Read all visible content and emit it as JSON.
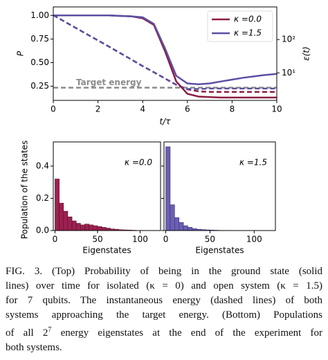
{
  "chart_data": [
    {
      "type": "line",
      "xlabel": "t/τ",
      "ylabel": "P",
      "y2label": "ε(t)",
      "x": [
        0,
        0.5,
        1,
        1.5,
        2,
        2.5,
        3,
        3.5,
        4,
        4.5,
        5,
        5.5,
        6,
        6.5,
        7,
        7.5,
        8,
        8.5,
        9,
        9.5,
        10
      ],
      "series": [
        {
          "name": "κ =0.0",
          "color": "#8c1c45",
          "values": [
            1.0,
            1.0,
            1.0,
            1.0,
            1.0,
            1.0,
            0.995,
            0.99,
            0.97,
            0.9,
            0.62,
            0.3,
            0.17,
            0.14,
            0.135,
            0.13,
            0.13,
            0.13,
            0.13,
            0.13,
            0.13
          ]
        },
        {
          "name": "κ =1.5",
          "color": "#5b4fa3",
          "values": [
            1.0,
            1.0,
            1.0,
            1.0,
            1.0,
            1.0,
            0.995,
            0.99,
            0.98,
            0.91,
            0.65,
            0.36,
            0.28,
            0.27,
            0.28,
            0.3,
            0.32,
            0.34,
            0.355,
            0.37,
            0.38
          ]
        }
      ],
      "energy_series": [
        {
          "color": "#8c1c45",
          "style": "dashed",
          "axis": "y2",
          "values": [
            537,
            347,
            224,
            145,
            94,
            61,
            39,
            25,
            16,
            10.5,
            6.8,
            4.4,
            3.2,
            2.8,
            2.7,
            2.7,
            2.7,
            2.7,
            2.7,
            2.7,
            2.7
          ]
        },
        {
          "color": "#5b4fa3",
          "style": "dashed",
          "axis": "y2",
          "values": [
            537,
            347,
            224,
            145,
            94,
            61,
            39,
            25,
            16,
            10.5,
            6.8,
            4.4,
            3.3,
            3.3,
            3.4,
            3.4,
            3.4,
            3.4,
            3.4,
            3.4,
            3.4
          ]
        }
      ],
      "target": {
        "label": "Target energy",
        "value": 3.6,
        "color": "#8c8c8c"
      },
      "xlim": [
        0,
        10
      ],
      "xticks": [
        0,
        2,
        4,
        6,
        8,
        10
      ],
      "ylim": [
        0.1,
        1.09
      ],
      "yticks": [
        0.25,
        {
          "value": 0.5,
          "label": "0.50"
        },
        0.75,
        {
          "value": 1.0,
          "label": "1.00"
        }
      ],
      "y2lim": [
        1.5,
        950
      ],
      "y2scale": "log",
      "y2ticks": [
        {
          "value": 10,
          "label": "10¹"
        },
        {
          "value": 100,
          "label": "10²"
        }
      ],
      "legend": "upper right"
    },
    {
      "type": "histogram",
      "annotation": "κ =0.0",
      "xlabel": "Eigenstates",
      "ylabel": "Population of the states",
      "color": "#9b2150",
      "edgecolor": "#5a0f2a",
      "bins": [
        0,
        5,
        10,
        15,
        20,
        25,
        30,
        35,
        40,
        45,
        50,
        55,
        60,
        65,
        70,
        75,
        80,
        85,
        90,
        95,
        100,
        105
      ],
      "values": [
        0.32,
        0.17,
        0.12,
        0.085,
        0.06,
        0.045,
        0.035,
        0.04,
        0.035,
        0.03,
        0.025,
        0.02,
        0.015,
        0.01,
        0.008,
        0.005,
        0.004,
        0.003,
        0.002,
        0.001,
        0.001
      ],
      "xlim": [
        -2,
        124
      ],
      "xticks": [
        0,
        50,
        100
      ],
      "ylim": [
        0,
        0.55
      ],
      "yticks": [
        {
          "value": 0,
          "label": "0.0"
        },
        0.2,
        0.4
      ]
    },
    {
      "type": "histogram",
      "annotation": "κ =1.5",
      "xlabel": "Eigenstates",
      "color": "#6a5fb0",
      "edgecolor": "#3b3080",
      "bins": [
        0,
        5,
        10,
        15,
        20,
        25,
        30,
        35,
        40,
        45,
        50,
        55,
        60,
        65,
        70
      ],
      "values": [
        0.52,
        0.16,
        0.08,
        0.05,
        0.03,
        0.02,
        0.012,
        0.008,
        0.006,
        0.004,
        0.003,
        0.002,
        0.001,
        0.001
      ],
      "xlim": [
        -2,
        124
      ],
      "xticks": [
        0,
        50,
        100
      ],
      "ylim": [
        0,
        0.55
      ]
    }
  ],
  "caption": {
    "lines": [
      [
        "FIG. 3.    (Top) Probability of being in the ground state (solid"
      ],
      [
        "lines) over time for isolated (κ = 0) and open system (κ = 1.5)"
      ],
      [
        "for 7 qubits.  The instantaneous energy (dashed lines) of both"
      ],
      [
        "systems approaching the target energy. (Bottom) Populations"
      ],
      [
        "of all 2",
        "7",
        " energy eigenstates at the end of the experiment for"
      ],
      [
        "both systems."
      ]
    ]
  }
}
